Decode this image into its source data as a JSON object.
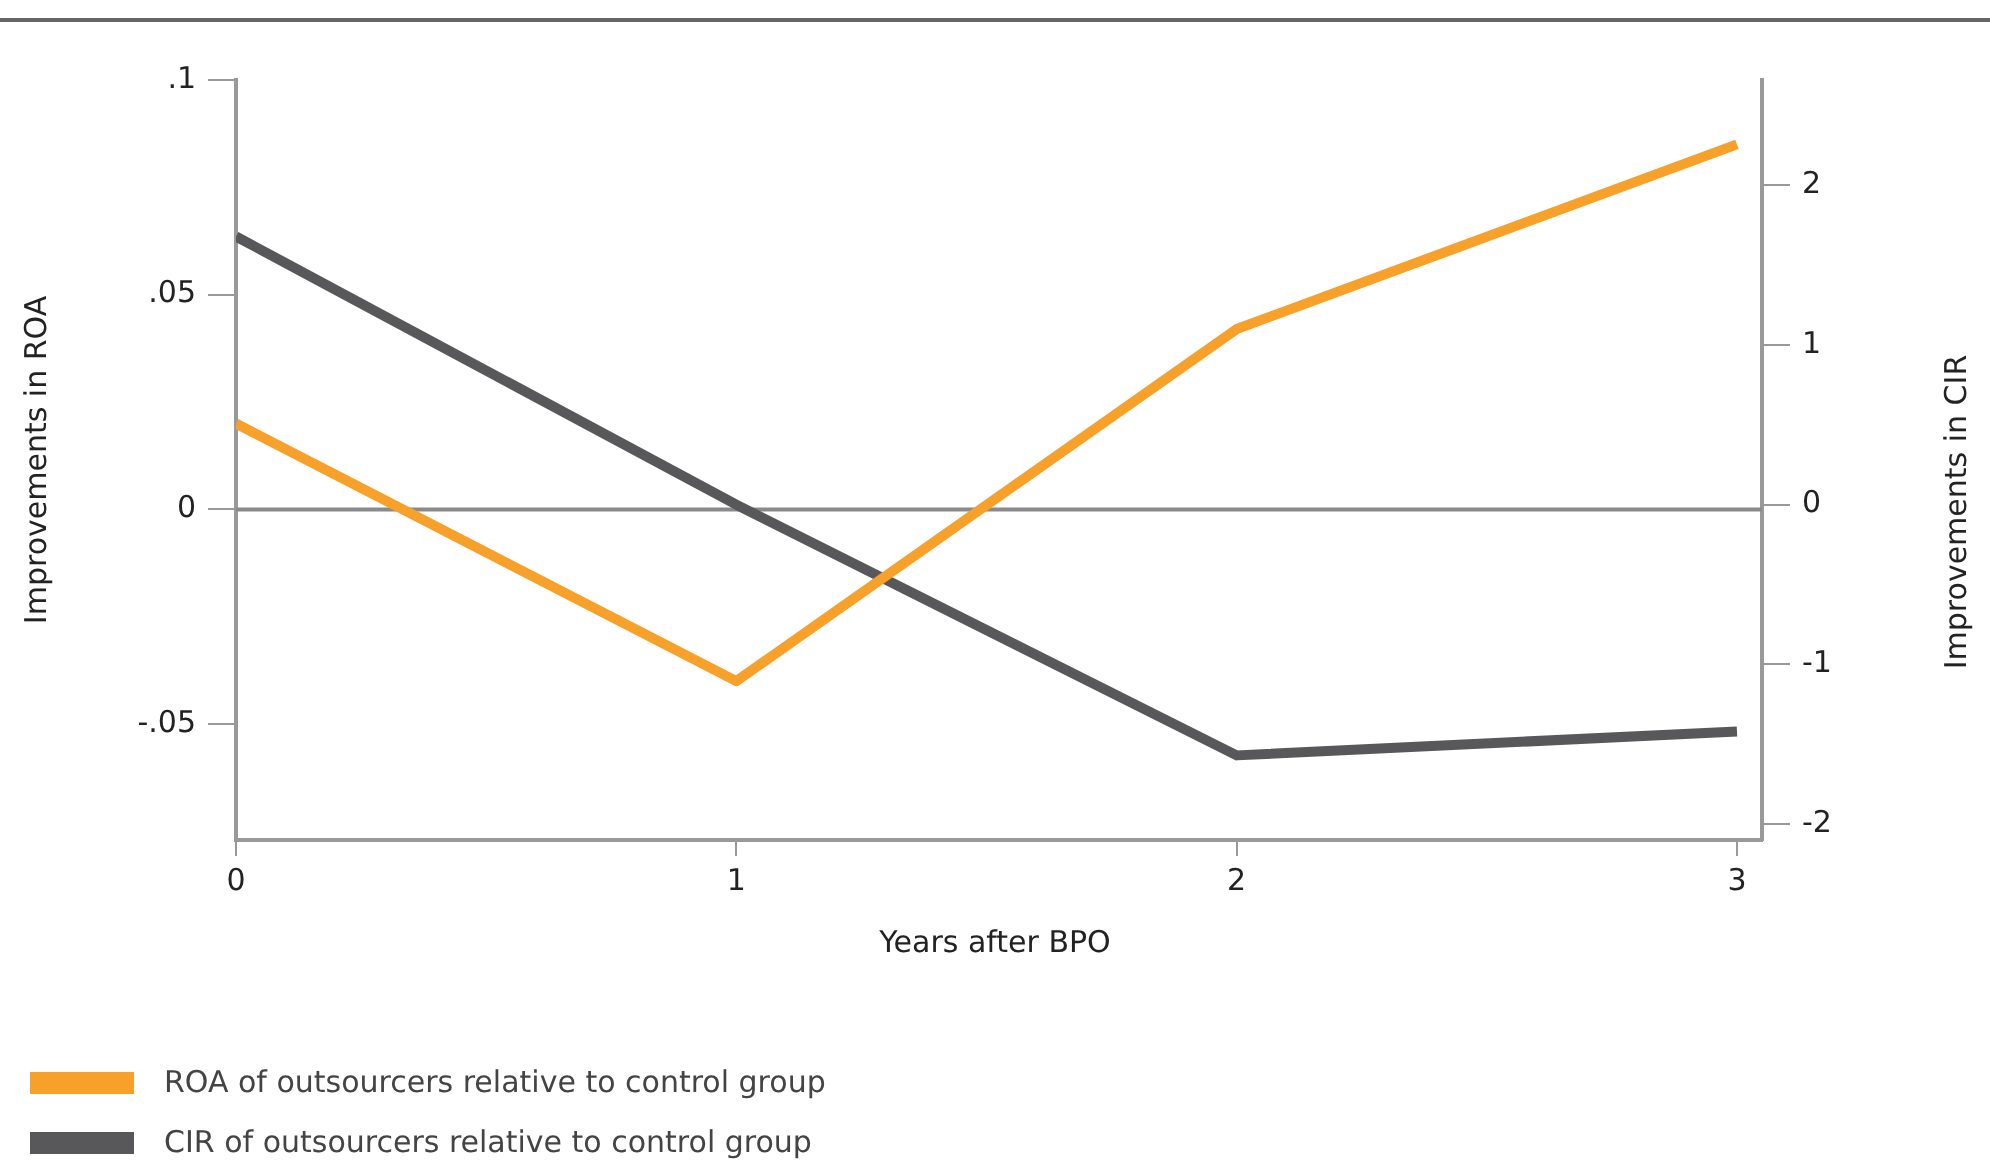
{
  "chart_data": {
    "type": "line",
    "xlabel": "Years after BPO",
    "ylabel": "Improvements in ROA",
    "y2label": "Improvements in CIR",
    "x": [
      0,
      1,
      2,
      3
    ],
    "xlim": [
      0,
      3.05
    ],
    "xticks": [
      0,
      1,
      2,
      3
    ],
    "ylim": [
      -0.077,
      0.1
    ],
    "yticks": [
      {
        "value": 0.1,
        "label": ".1"
      },
      {
        "value": 0.05,
        "label": ".05"
      },
      0,
      {
        "value": -0.05,
        "label": "-.05"
      }
    ],
    "y2lim": [
      -2.1,
      2.66
    ],
    "y2ticks": [
      2,
      1,
      0,
      -1,
      -2
    ],
    "series": [
      {
        "name": "ROA of outsourcers relative to control group",
        "color": "#f7a02a",
        "values": [
          0.02,
          -0.04,
          0.042,
          0.085
        ]
      },
      {
        "name": "CIR of outsourcers relative to control group",
        "color": "#58585a",
        "axis": "y2",
        "values": [
          1.68,
          0,
          -1.57,
          -1.42
        ]
      }
    ],
    "ref_lines": [
      {
        "axis": "y",
        "value": 0,
        "color": "#8a8a8c"
      }
    ],
    "grid": false,
    "legend": "bottom",
    "marker": "none",
    "line_style": "solid"
  }
}
